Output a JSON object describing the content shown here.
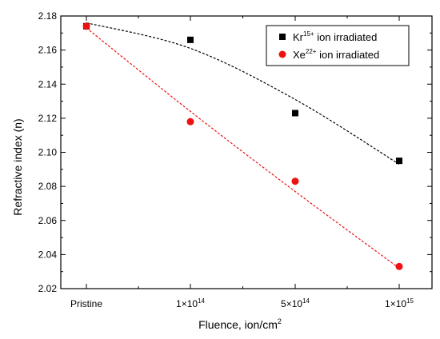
{
  "chart_data": {
    "type": "scatter",
    "title": "",
    "xlabel": "Fluence, ion/cm",
    "xlabel_sup": "2",
    "ylabel": "Refractive index (n)",
    "categories": [
      {
        "base": "Pristine",
        "sup": ""
      },
      {
        "base": "1×10",
        "sup": "14"
      },
      {
        "base": "5×10",
        "sup": "14"
      },
      {
        "base": "1×10",
        "sup": "15"
      }
    ],
    "ylim": [
      2.02,
      2.18
    ],
    "yticks": [
      "2.02",
      "2.04",
      "2.06",
      "2.08",
      "2.10",
      "2.12",
      "2.14",
      "2.16",
      "2.18"
    ],
    "grid": false,
    "legend": "top-right",
    "series": [
      {
        "name": {
          "pre": "Kr",
          "sup": "15+",
          "post": " ion irradiated"
        },
        "marker": "square",
        "color": "#000000",
        "values": [
          2.174,
          2.166,
          2.123,
          2.095
        ],
        "fit": [
          2.176,
          2.161,
          2.131,
          2.093
        ]
      },
      {
        "name": {
          "pre": "Xe",
          "sup": "22+",
          "post": " ion irradiated"
        },
        "marker": "circle",
        "color": "#ee1111",
        "values": [
          2.174,
          2.118,
          2.083,
          2.033
        ],
        "fit": [
          2.173,
          2.124,
          2.077,
          2.032
        ]
      }
    ]
  }
}
